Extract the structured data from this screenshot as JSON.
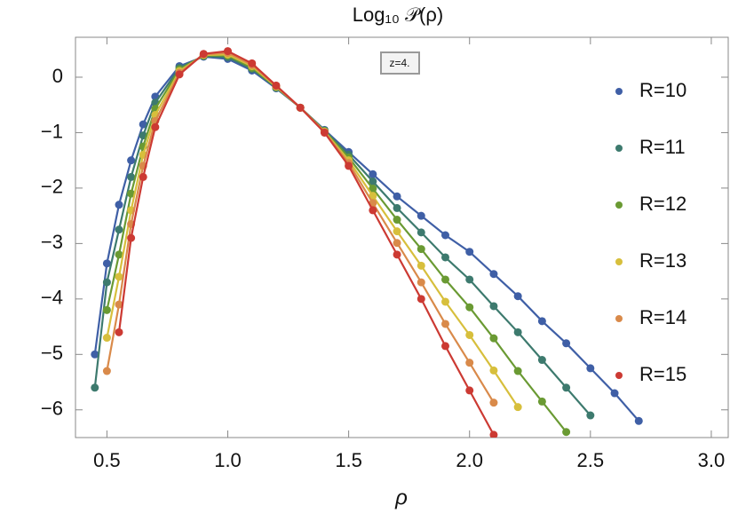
{
  "chart_data": {
    "type": "line",
    "title": "Log₁₀ 𝒫(ρ)",
    "annotation": "z=4.",
    "x_label": "ρ",
    "x": [
      0.45,
      0.5,
      0.55,
      0.6,
      0.65,
      0.7,
      0.8,
      0.9,
      1.0,
      1.1,
      1.2,
      1.3,
      1.4,
      1.5,
      1.6,
      1.7,
      1.8,
      1.9,
      2.0,
      2.1,
      2.2,
      2.3,
      2.4,
      2.5,
      2.6,
      2.7
    ],
    "series": [
      {
        "name": "R=10",
        "color": "#3f5fa6",
        "values": [
          -5.0,
          -3.36,
          -2.3,
          -1.5,
          -0.85,
          -0.35,
          0.2,
          0.37,
          0.33,
          0.12,
          -0.2,
          -0.55,
          -0.95,
          -1.35,
          -1.75,
          -2.15,
          -2.5,
          -2.85,
          -3.15,
          -3.55,
          -3.95,
          -4.4,
          -4.8,
          -5.25,
          -5.7,
          -6.2
        ]
      },
      {
        "name": "R=11",
        "color": "#3d7a6e",
        "values": [
          -5.6,
          -3.7,
          -2.75,
          -1.8,
          -1.05,
          -0.46,
          0.17,
          0.38,
          0.36,
          0.15,
          -0.19,
          -0.55,
          -0.96,
          -1.4,
          -1.88,
          -2.36,
          -2.8,
          -3.25,
          -3.65,
          -4.13,
          -4.6,
          -5.1,
          -5.6,
          -6.1,
          null,
          null
        ]
      },
      {
        "name": "R=12",
        "color": "#6a9a33",
        "values": [
          null,
          -4.2,
          -3.2,
          -2.1,
          -1.25,
          -0.57,
          0.14,
          0.39,
          0.39,
          0.17,
          -0.18,
          -0.55,
          -0.97,
          -1.45,
          -2.01,
          -2.57,
          -3.1,
          -3.65,
          -4.15,
          -4.71,
          -5.3,
          -5.85,
          -6.4,
          null,
          null,
          null
        ]
      },
      {
        "name": "R=13",
        "color": "#d7bf3c",
        "values": [
          null,
          -4.7,
          -3.6,
          -2.4,
          -1.4,
          -0.68,
          0.11,
          0.4,
          0.41,
          0.2,
          -0.17,
          -0.55,
          -0.98,
          -1.5,
          -2.14,
          -2.78,
          -3.4,
          -4.05,
          -4.65,
          -5.29,
          -5.95,
          null,
          null,
          null,
          null,
          null
        ]
      },
      {
        "name": "R=14",
        "color": "#d98a4a",
        "values": [
          null,
          -5.3,
          -4.1,
          -2.65,
          -1.6,
          -0.79,
          0.08,
          0.41,
          0.44,
          0.22,
          -0.16,
          -0.55,
          -0.99,
          -1.55,
          -2.27,
          -2.99,
          -3.7,
          -4.45,
          -5.15,
          -5.87,
          null,
          null,
          null,
          null,
          null,
          null
        ]
      },
      {
        "name": "R=15",
        "color": "#cc3a33",
        "values": [
          null,
          null,
          -4.6,
          -2.9,
          -1.8,
          -0.9,
          0.05,
          0.42,
          0.47,
          0.25,
          -0.15,
          -0.55,
          -1.0,
          -1.6,
          -2.4,
          -3.2,
          -4.0,
          -4.85,
          -5.65,
          -6.45,
          null,
          null,
          null,
          null,
          null,
          null
        ]
      }
    ],
    "xlim": [
      0.37,
      3.07
    ],
    "ylim": [
      -6.5,
      0.72
    ],
    "xticks": [
      0.5,
      {
        "value": 1.0,
        "label": "1.0"
      },
      1.5,
      {
        "value": 2.0,
        "label": "2.0"
      },
      2.5,
      {
        "value": 3.0,
        "label": "3.0"
      }
    ],
    "yticks": [
      0,
      -1,
      -2,
      -3,
      -4,
      -5,
      -6
    ],
    "grid": false,
    "legend": "right"
  }
}
